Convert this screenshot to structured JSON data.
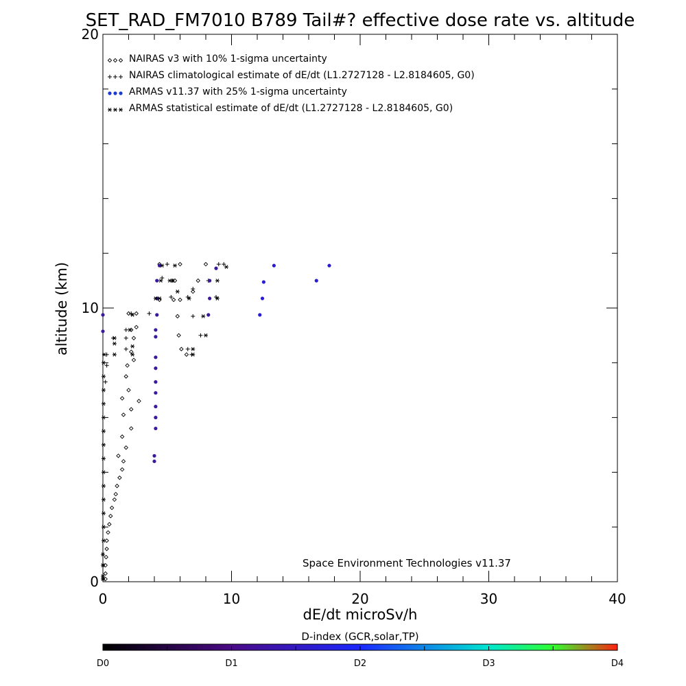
{
  "chart_data": {
    "type": "scatter",
    "title": "SET_RAD_FM7010  B789 Tail#? effective dose rate vs. altitude",
    "xlabel": "dE/dt microSv/h",
    "ylabel": "altitude (km)",
    "xlim": [
      0,
      40
    ],
    "ylim": [
      0,
      20
    ],
    "x_ticks": [
      "0",
      "10",
      "20",
      "30",
      "40"
    ],
    "y_ticks": [
      "0",
      "10",
      "20"
    ],
    "legend_position": "top-left",
    "annotation": "Space Environment Technologies v11.37",
    "series": [
      {
        "name": "NAIRAS v3 with 10% 1-sigma uncertainty",
        "marker": "diamond",
        "color": "#000000",
        "points": [
          [
            0.2,
            0.1
          ],
          [
            0.2,
            0.3
          ],
          [
            0.2,
            0.6
          ],
          [
            0.25,
            0.9
          ],
          [
            0.3,
            1.2
          ],
          [
            0.3,
            1.5
          ],
          [
            0.4,
            1.8
          ],
          [
            0.5,
            2.1
          ],
          [
            0.6,
            2.4
          ],
          [
            0.7,
            2.7
          ],
          [
            0.9,
            3.0
          ],
          [
            1.0,
            3.2
          ],
          [
            1.1,
            3.5
          ],
          [
            1.3,
            3.8
          ],
          [
            1.5,
            4.1
          ],
          [
            1.6,
            4.4
          ],
          [
            1.2,
            4.6
          ],
          [
            1.8,
            4.9
          ],
          [
            1.5,
            5.3
          ],
          [
            2.2,
            5.6
          ],
          [
            1.6,
            6.1
          ],
          [
            2.2,
            6.3
          ],
          [
            1.5,
            6.7
          ],
          [
            2.0,
            7.0
          ],
          [
            2.8,
            6.6
          ],
          [
            1.8,
            7.5
          ],
          [
            1.9,
            7.9
          ],
          [
            2.4,
            8.1
          ],
          [
            2.2,
            8.4
          ],
          [
            2.4,
            8.9
          ],
          [
            2.2,
            9.2
          ],
          [
            2.6,
            9.3
          ],
          [
            2.0,
            9.8
          ],
          [
            2.6,
            9.8
          ],
          [
            4.4,
            10.3
          ],
          [
            5.5,
            10.3
          ],
          [
            6.0,
            10.3
          ],
          [
            7.0,
            10.6
          ],
          [
            5.6,
            11.0
          ],
          [
            7.4,
            11.0
          ],
          [
            4.4,
            11.6
          ],
          [
            6.0,
            11.6
          ],
          [
            8.0,
            11.6
          ],
          [
            5.8,
            9.7
          ],
          [
            5.9,
            9.0
          ],
          [
            6.1,
            8.5
          ],
          [
            6.5,
            8.3
          ]
        ]
      },
      {
        "name": "NAIRAS climatological estimate of dE/dt (L1.2727128 - L2.8184605, G0)",
        "marker": "plus",
        "color": "#000000",
        "points": [
          [
            0.2,
            7.3
          ],
          [
            0.3,
            7.9
          ],
          [
            0.3,
            8.3
          ],
          [
            1.8,
            8.5
          ],
          [
            0.8,
            8.9
          ],
          [
            1.8,
            8.9
          ],
          [
            1.8,
            9.2
          ],
          [
            2.2,
            9.8
          ],
          [
            3.6,
            9.8
          ],
          [
            5.3,
            10.4
          ],
          [
            6.6,
            10.4
          ],
          [
            7.0,
            10.7
          ],
          [
            8.8,
            10.4
          ],
          [
            5.4,
            11.0
          ],
          [
            8.2,
            11.0
          ],
          [
            9.0,
            11.6
          ],
          [
            5.0,
            11.6
          ],
          [
            7.0,
            9.7
          ],
          [
            7.6,
            9.0
          ],
          [
            6.6,
            8.5
          ],
          [
            6.9,
            8.3
          ],
          [
            4.6,
            11.1
          ],
          [
            9.4,
            11.6
          ]
        ]
      },
      {
        "name": "ARMAS v11.37 with 25% 1-sigma uncertainty",
        "marker": "dot",
        "color": "#3a1a9a",
        "points": [
          [
            0.0,
            9.75
          ],
          [
            0.0,
            9.15
          ],
          [
            4.0,
            4.4
          ],
          [
            4.0,
            4.6
          ],
          [
            4.1,
            5.6
          ],
          [
            4.1,
            6.0
          ],
          [
            4.1,
            6.4
          ],
          [
            4.1,
            6.9
          ],
          [
            4.1,
            7.3
          ],
          [
            4.1,
            7.8
          ],
          [
            4.1,
            8.2
          ],
          [
            4.1,
            8.95
          ],
          [
            4.1,
            9.2
          ],
          [
            4.2,
            9.75
          ],
          [
            4.2,
            10.35
          ],
          [
            4.2,
            11.0
          ],
          [
            4.4,
            11.55
          ],
          [
            8.2,
            9.75
          ],
          [
            8.3,
            10.35
          ],
          [
            8.3,
            11.0
          ],
          [
            8.8,
            11.45
          ],
          [
            12.2,
            9.75
          ],
          [
            12.4,
            10.35
          ],
          [
            12.5,
            10.95
          ],
          [
            13.3,
            11.55
          ],
          [
            16.6,
            11.0
          ],
          [
            17.6,
            11.55
          ]
        ]
      },
      {
        "name": "ARMAS statistical estimate of dE/dt (L1.2727128 - L2.8184605, G0)",
        "marker": "asterisk",
        "color": "#000000",
        "points": [
          [
            0.0,
            0.1
          ],
          [
            0.0,
            0.2
          ],
          [
            0.0,
            0.6
          ],
          [
            0.0,
            1.0
          ],
          [
            0.05,
            1.5
          ],
          [
            0.05,
            2.0
          ],
          [
            0.05,
            2.5
          ],
          [
            0.05,
            3.0
          ],
          [
            0.05,
            3.5
          ],
          [
            0.05,
            4.0
          ],
          [
            0.05,
            4.5
          ],
          [
            0.05,
            5.0
          ],
          [
            0.05,
            5.5
          ],
          [
            0.05,
            6.0
          ],
          [
            0.05,
            6.5
          ],
          [
            0.05,
            7.0
          ],
          [
            0.05,
            7.5
          ],
          [
            0.05,
            8.0
          ],
          [
            0.1,
            8.3
          ],
          [
            0.9,
            8.3
          ],
          [
            0.9,
            8.7
          ],
          [
            0.9,
            8.9
          ],
          [
            2.3,
            8.3
          ],
          [
            2.3,
            8.6
          ],
          [
            2.1,
            9.2
          ],
          [
            2.3,
            9.75
          ],
          [
            4.1,
            10.35
          ],
          [
            4.4,
            10.35
          ],
          [
            5.8,
            10.6
          ],
          [
            6.7,
            10.35
          ],
          [
            8.9,
            10.35
          ],
          [
            4.5,
            11.0
          ],
          [
            5.4,
            11.0
          ],
          [
            8.9,
            11.0
          ],
          [
            4.6,
            11.55
          ],
          [
            5.6,
            11.55
          ],
          [
            9.6,
            11.5
          ],
          [
            7.0,
            8.5
          ],
          [
            7.0,
            8.3
          ],
          [
            8.0,
            9.0
          ],
          [
            7.8,
            9.7
          ],
          [
            5.2,
            11.0
          ]
        ]
      }
    ],
    "colorbar": {
      "title": "D-index (GCR,solar,TP)",
      "labels": [
        "D0",
        "D1",
        "D2",
        "D3",
        "D4"
      ],
      "stops": [
        {
          "value": 0.0,
          "color": "#000000"
        },
        {
          "value": 1.0,
          "color": "#4a0a86"
        },
        {
          "value": 2.0,
          "color": "#1c28ff"
        },
        {
          "value": 3.0,
          "color": "#00e6d0"
        },
        {
          "value": 3.5,
          "color": "#30ff30"
        },
        {
          "value": 4.0,
          "color": "#ff2010"
        }
      ],
      "label_values": [
        0,
        1,
        2,
        3,
        4
      ]
    }
  }
}
